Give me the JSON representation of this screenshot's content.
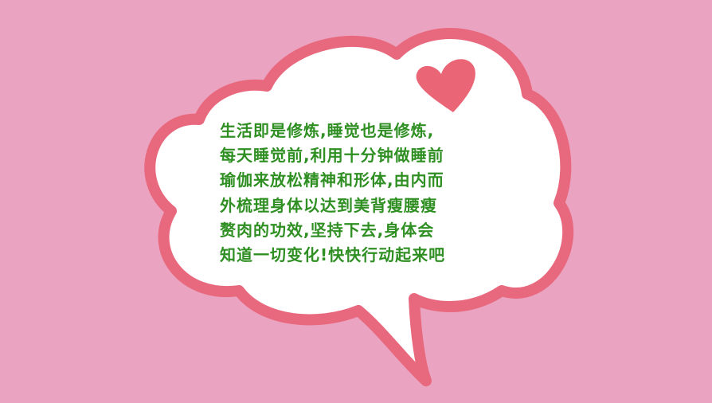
{
  "background_color": "#eaa3c1",
  "bubble": {
    "fill_color": "#ffffff",
    "border_color": "#e8697e"
  },
  "heart": {
    "icon": "heart-icon",
    "color": "#ea6677"
  },
  "message": {
    "color": "#2f8f23",
    "lines": [
      "生活即是修炼,睡觉也是修炼,",
      "每天睡觉前,利用十分钟做睡前",
      "瑜伽来放松精神和形体,由内而",
      "外梳理身体以达到美背瘦腰瘦",
      "赘肉的功效,坚持下去,身体会",
      "知道一切变化!快快行动起来吧"
    ]
  }
}
